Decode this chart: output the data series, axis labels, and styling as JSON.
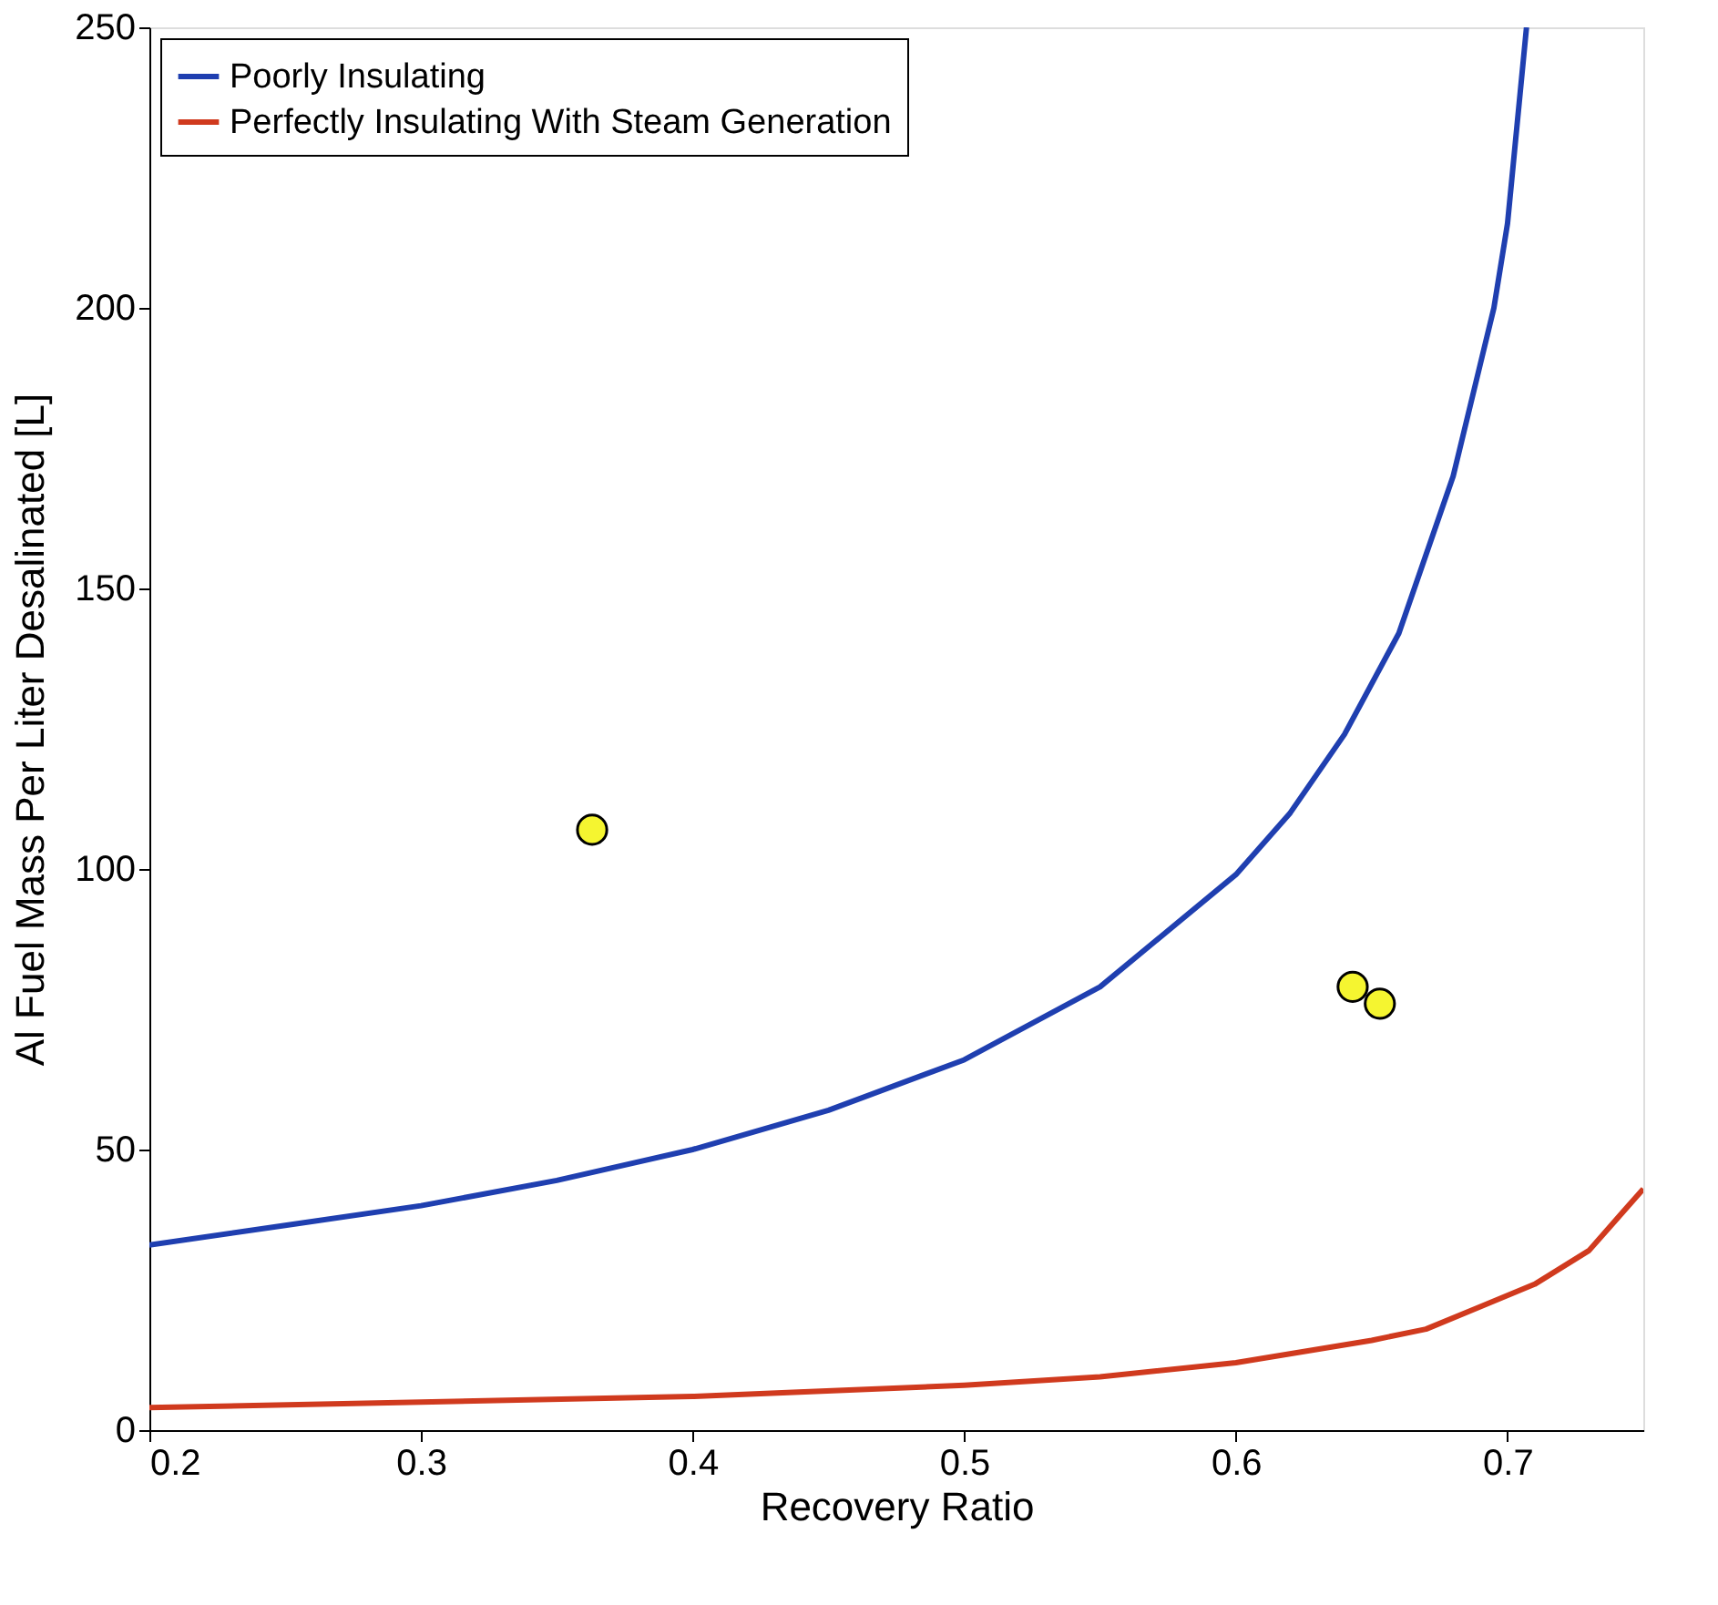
{
  "chart_data": {
    "type": "line",
    "xlabel": "Recovery Ratio",
    "ylabel": "Al Fuel Mass Per Liter Desalinated [L]",
    "xlim": [
      0.2,
      0.75
    ],
    "xticks": [
      0.2,
      0.3,
      0.4,
      0.5,
      0.6,
      0.7
    ],
    "ylim": [
      0,
      250
    ],
    "yticks": [
      0,
      50,
      100,
      150,
      200,
      250
    ],
    "grid": false,
    "legend": "top left",
    "series": [
      {
        "name": "Poorly Insulating",
        "color": "#1f3fb0",
        "x": [
          0.2,
          0.25,
          0.3,
          0.35,
          0.4,
          0.45,
          0.5,
          0.55,
          0.6,
          0.62,
          0.64,
          0.66,
          0.68,
          0.69,
          0.695,
          0.7,
          0.707
        ],
        "values": [
          33,
          36.5,
          40,
          44.5,
          50,
          57,
          66,
          79,
          99,
          110,
          124,
          142,
          170,
          190,
          200,
          215,
          250
        ]
      },
      {
        "name": "Perfectly Insulating With Steam Generation",
        "color": "#d03a1e",
        "x": [
          0.2,
          0.3,
          0.4,
          0.5,
          0.55,
          0.6,
          0.65,
          0.67,
          0.69,
          0.71,
          0.73,
          0.75
        ],
        "values": [
          4,
          5,
          6,
          8,
          9.5,
          12,
          16,
          18,
          22,
          26,
          32,
          43
        ]
      },
      {
        "type": "scatter",
        "marker": "circle",
        "color": "#f5f530",
        "x": [
          0.363,
          0.643,
          0.653
        ],
        "values": [
          107,
          79,
          76
        ]
      }
    ]
  }
}
